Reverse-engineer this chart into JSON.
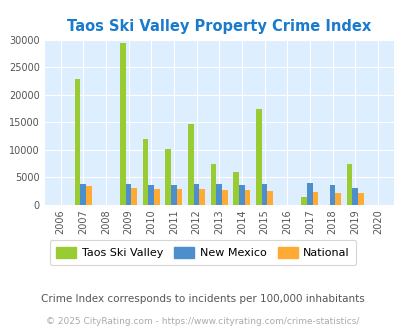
{
  "title": "Taos Ski Valley Property Crime Index",
  "title_color": "#1a7acc",
  "years": [
    2006,
    2007,
    2008,
    2009,
    2010,
    2011,
    2012,
    2013,
    2014,
    2015,
    2016,
    2017,
    2018,
    2019,
    2020
  ],
  "taos": [
    0,
    22800,
    0,
    29300,
    11900,
    10200,
    14600,
    7400,
    5900,
    17400,
    0,
    1300,
    0,
    7400,
    0
  ],
  "nm": [
    0,
    3700,
    0,
    3700,
    3600,
    3500,
    3700,
    3700,
    3500,
    3700,
    0,
    3900,
    3500,
    3100,
    0
  ],
  "nat": [
    0,
    3300,
    0,
    3100,
    2900,
    2900,
    2900,
    2700,
    2600,
    2500,
    0,
    2300,
    2200,
    2200,
    0
  ],
  "taos_color": "#99cc33",
  "nm_color": "#4d8fcc",
  "nat_color": "#ffaa33",
  "bg_color": "#ddeeff",
  "ylim": [
    0,
    30000
  ],
  "yticks": [
    0,
    5000,
    10000,
    15000,
    20000,
    25000,
    30000
  ],
  "ytick_labels": [
    "0",
    "5000",
    "10000",
    "15000",
    "20000",
    "25000",
    "30000"
  ],
  "bar_width": 0.25,
  "legend_labels": [
    "Taos Ski Valley",
    "New Mexico",
    "National"
  ],
  "footnote1": "Crime Index corresponds to incidents per 100,000 inhabitants",
  "footnote2": "© 2025 CityRating.com - https://www.cityrating.com/crime-statistics/",
  "footnote1_color": "#555555",
  "footnote2_color": "#aaaaaa"
}
